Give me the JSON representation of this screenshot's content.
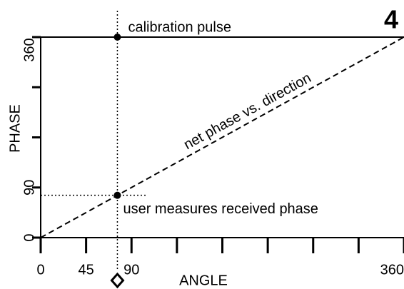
{
  "chart_data": {
    "type": "line",
    "panel_label": "4",
    "xlabel": "ANGLE",
    "ylabel": "PHASE",
    "xlim": [
      0,
      360
    ],
    "ylim": [
      0,
      360
    ],
    "xticks": [
      0,
      45,
      90,
      360
    ],
    "xminor_ticks": [
      135,
      180,
      225,
      270,
      315
    ],
    "yticks": [
      0,
      90,
      360
    ],
    "yminor_ticks": [
      180,
      270
    ],
    "series": [
      {
        "name": "net phase vs. direction",
        "color": "#000000",
        "style": "dashed",
        "x": [
          0,
          360
        ],
        "values": [
          0,
          360
        ]
      }
    ],
    "points": [
      {
        "label": "calibration pulse",
        "x": 76,
        "y": 360
      },
      {
        "label": "user measures received phase",
        "x": 76,
        "y": 76
      }
    ],
    "vline": {
      "x": 76
    },
    "hline": {
      "y": 76,
      "x_end": 105
    },
    "marker": {
      "x": 76
    }
  }
}
